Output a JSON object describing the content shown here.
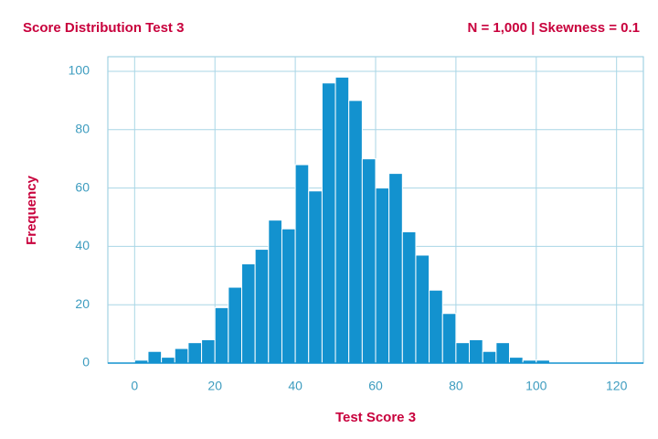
{
  "chart_data": {
    "type": "histogram",
    "title": "Score Distribution Test 3",
    "subtitle": "N = 1,000 | Skewness = 0.1",
    "xlabel": "Test Score 3",
    "ylabel": "Frequency",
    "color": "#1392cf",
    "bins": [
      -6.67,
      -3.33,
      0,
      3.33,
      6.67,
      10,
      13.33,
      16.67,
      20,
      23.33,
      26.67,
      30,
      33.33,
      36.67,
      40,
      43.33,
      46.67,
      50,
      53.33,
      56.67,
      60,
      63.33,
      66.67,
      70,
      73.33,
      76.67,
      80,
      83.33,
      86.67,
      90,
      93.33,
      96.67,
      100,
      103.33,
      106.67,
      110,
      113.33,
      116.67,
      120,
      123.33,
      126.67
    ],
    "values": [
      0,
      0,
      1,
      4,
      2,
      5,
      7,
      8,
      19,
      26,
      34,
      39,
      49,
      46,
      68,
      59,
      96,
      98,
      90,
      70,
      60,
      65,
      45,
      37,
      25,
      17,
      7,
      8,
      4,
      7,
      2,
      1,
      1,
      0,
      0,
      0,
      0,
      0,
      0,
      0
    ],
    "xlim": [
      -6.67,
      126.67
    ],
    "ylim": [
      0,
      105
    ],
    "xticks": [
      0,
      20,
      40,
      60,
      80,
      100,
      120
    ],
    "yticks": [
      0,
      20,
      40,
      60,
      80,
      100
    ],
    "grid": true
  }
}
